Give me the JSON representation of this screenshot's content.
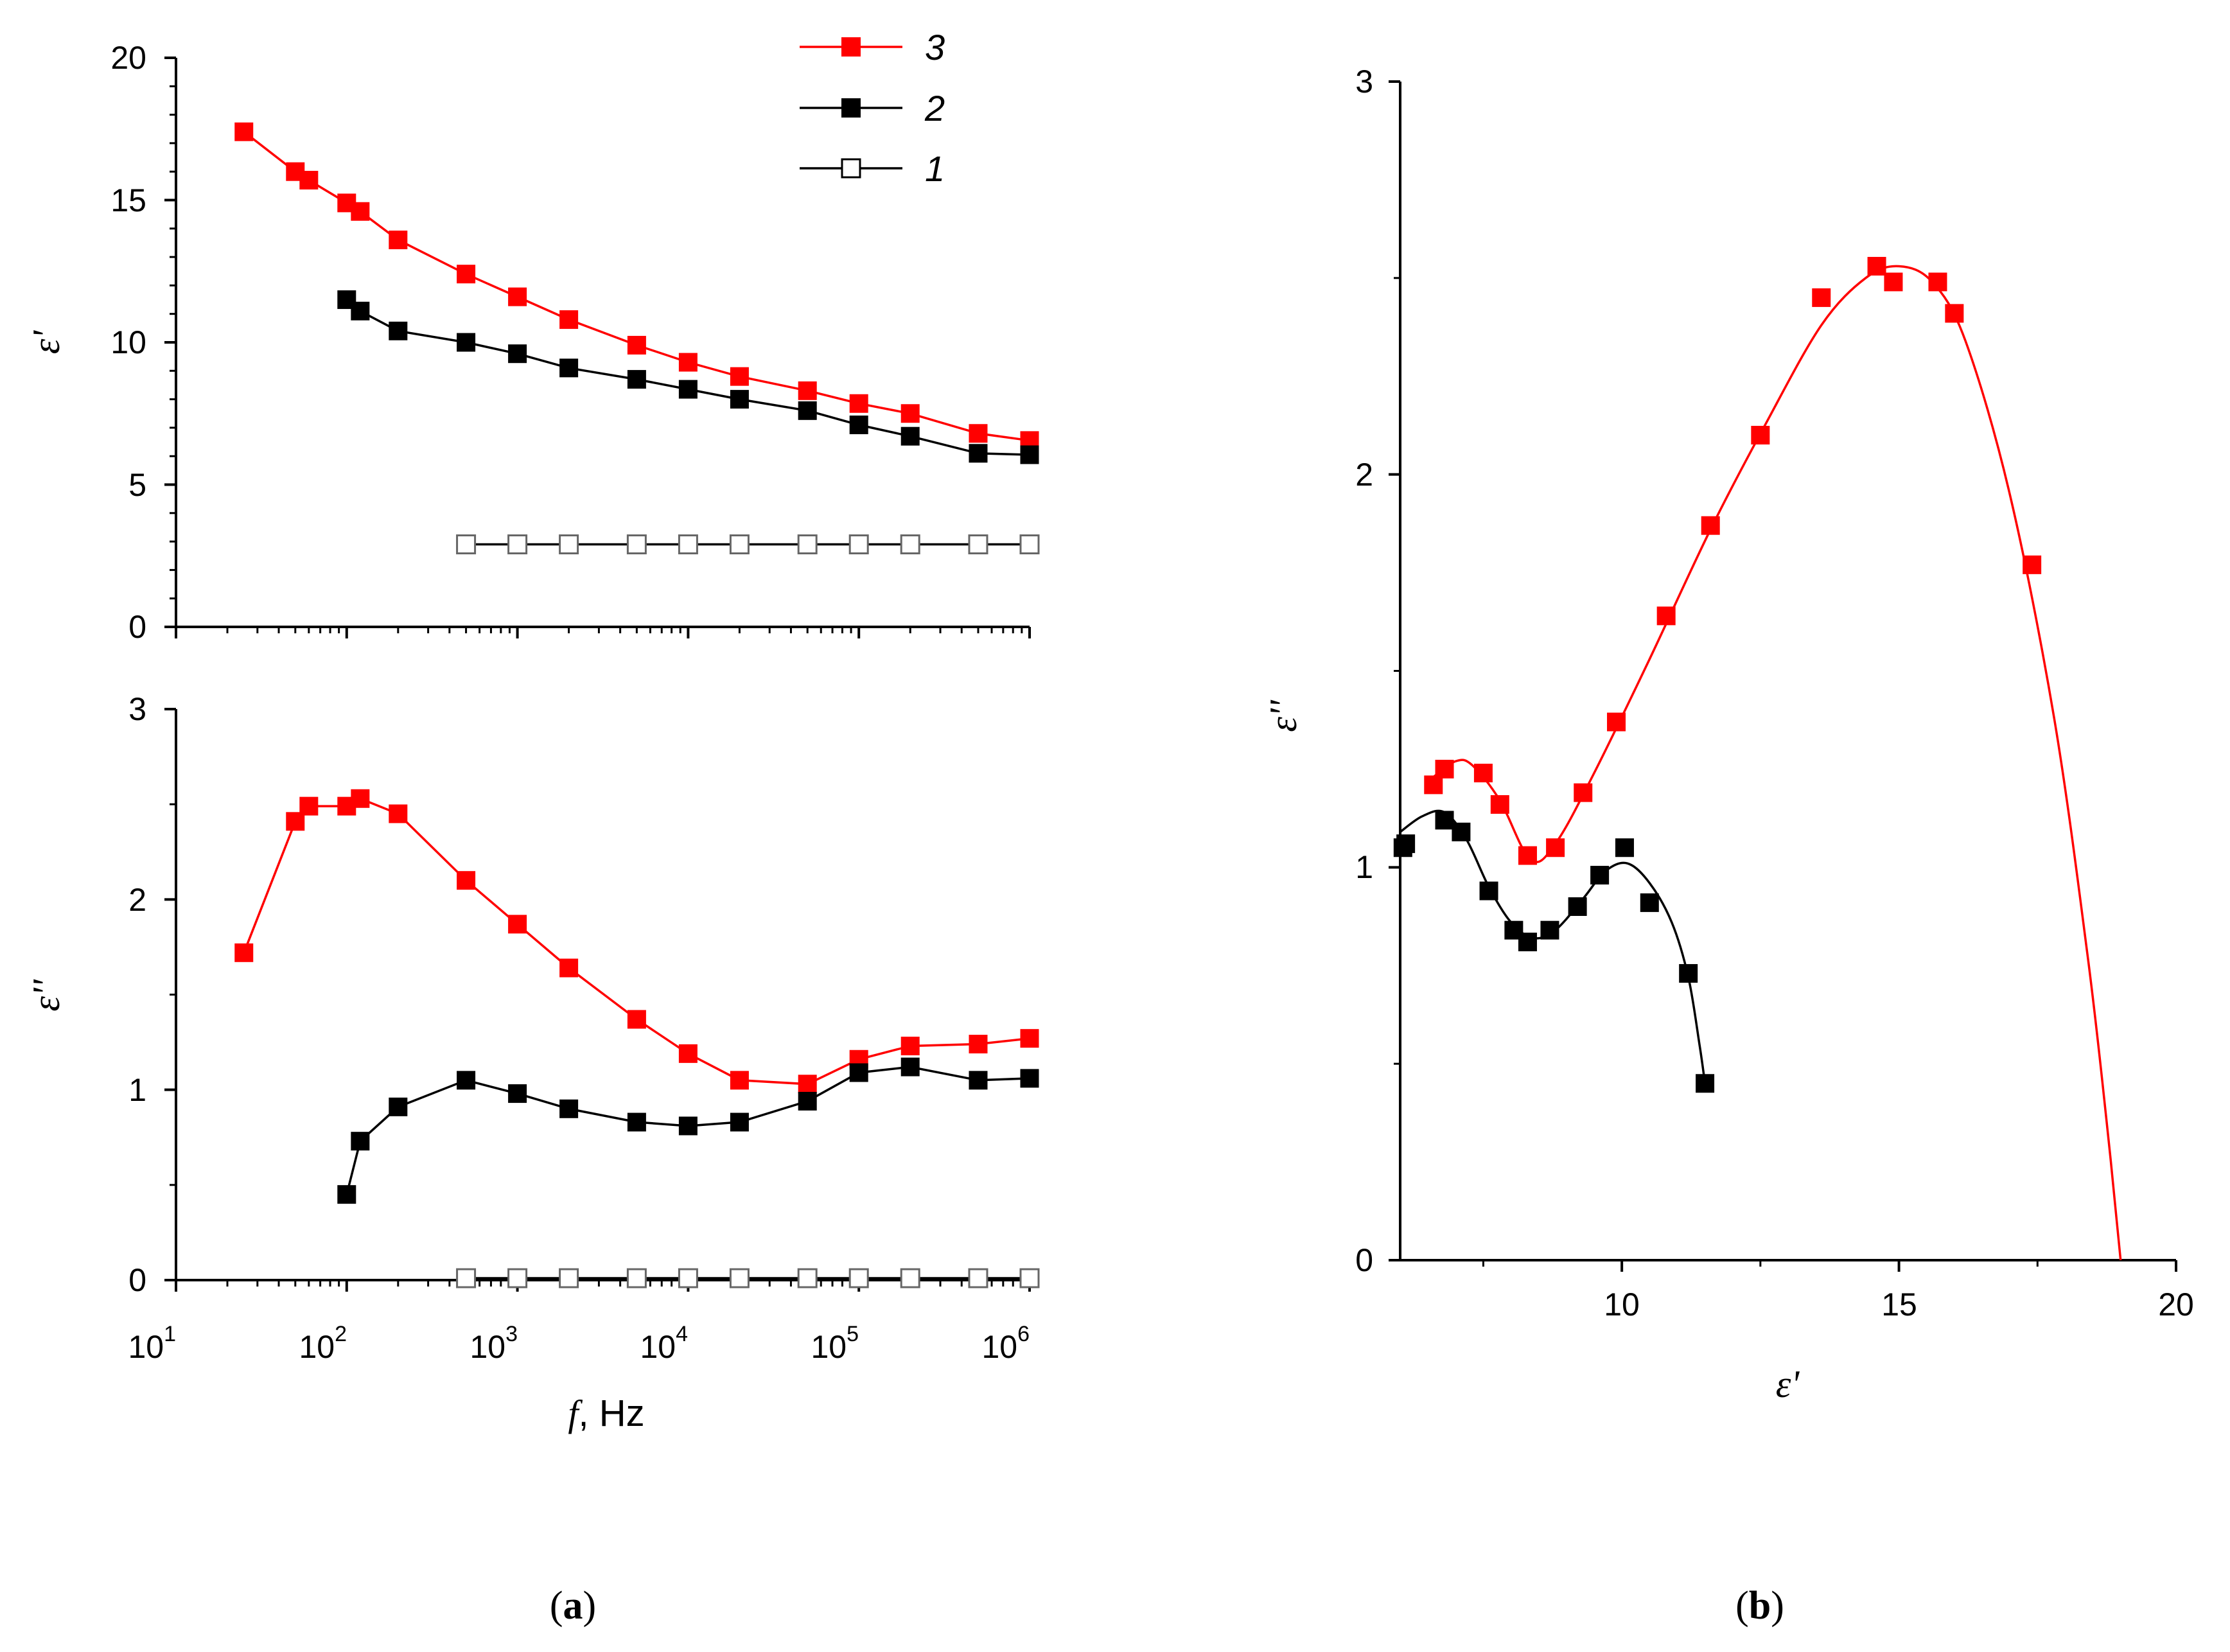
{
  "colors": {
    "red": "#ff0000",
    "black": "#000000",
    "open_fill": "#ffffff"
  },
  "legend": [
    {
      "label": "3",
      "color": "#ff0000",
      "marker": "filled-square"
    },
    {
      "label": "2",
      "color": "#000000",
      "marker": "filled-square"
    },
    {
      "label": "1",
      "color": "#000000",
      "marker": "open-square"
    }
  ],
  "panel_labels": {
    "a": {
      "open": "(",
      "letter": "a",
      "close": ")"
    },
    "b": {
      "open": "(",
      "letter": "b",
      "close": ")"
    }
  },
  "chart_data": [
    {
      "id": "a-top",
      "type": "line",
      "xscale": "log",
      "xlim": [
        10,
        1000000
      ],
      "ylim": [
        0,
        20
      ],
      "yticks": [
        "0",
        "5",
        "10",
        "15",
        "20"
      ],
      "ylabel": "ε'",
      "series": [
        {
          "name": "3",
          "color": "#ff0000",
          "marker": "filled-square",
          "x": [
            25,
            50,
            60,
            100,
            120,
            200,
            500,
            1000,
            2000,
            5000,
            10000,
            20000,
            50000,
            100000,
            200000,
            500000,
            1000000
          ],
          "y": [
            17.4,
            16.0,
            15.7,
            14.9,
            14.6,
            13.6,
            12.4,
            11.6,
            10.8,
            9.9,
            9.3,
            8.8,
            8.3,
            7.85,
            7.5,
            6.8,
            6.55
          ]
        },
        {
          "name": "2",
          "color": "#000000",
          "marker": "filled-square",
          "x": [
            100,
            120,
            200,
            500,
            1000,
            2000,
            5000,
            10000,
            20000,
            50000,
            100000,
            200000,
            500000,
            1000000
          ],
          "y": [
            11.5,
            11.1,
            10.4,
            10.0,
            9.6,
            9.1,
            8.7,
            8.35,
            8.0,
            7.6,
            7.1,
            6.7,
            6.1,
            6.05
          ]
        },
        {
          "name": "1",
          "color": "#000000",
          "marker": "open-square",
          "x": [
            500,
            1000,
            2000,
            5000,
            10000,
            20000,
            50000,
            100000,
            200000,
            500000,
            1000000
          ],
          "y": [
            2.9,
            2.9,
            2.9,
            2.9,
            2.9,
            2.9,
            2.9,
            2.9,
            2.9,
            2.9,
            2.9
          ]
        }
      ]
    },
    {
      "id": "a-bottom",
      "type": "line",
      "xscale": "log",
      "xlim": [
        10,
        1000000
      ],
      "ylim": [
        0,
        3
      ],
      "yticks": [
        "0",
        "1",
        "2",
        "3"
      ],
      "xticks": [
        {
          "base": "10",
          "exp": "1"
        },
        {
          "base": "10",
          "exp": "2"
        },
        {
          "base": "10",
          "exp": "3"
        },
        {
          "base": "10",
          "exp": "4"
        },
        {
          "base": "10",
          "exp": "5"
        },
        {
          "base": "10",
          "exp": "6"
        }
      ],
      "xlabel": {
        "symbol": "f",
        "unit": ", Hz"
      },
      "ylabel": "ε''",
      "series": [
        {
          "name": "3",
          "color": "#ff0000",
          "marker": "filled-square",
          "x": [
            25,
            50,
            60,
            100,
            120,
            200,
            500,
            1000,
            2000,
            5000,
            10000,
            20000,
            50000,
            100000,
            200000,
            500000,
            1000000
          ],
          "y": [
            1.72,
            2.41,
            2.49,
            2.49,
            2.53,
            2.45,
            2.1,
            1.87,
            1.64,
            1.37,
            1.19,
            1.05,
            1.03,
            1.16,
            1.23,
            1.24,
            1.27
          ]
        },
        {
          "name": "2",
          "color": "#000000",
          "marker": "filled-square",
          "x": [
            100,
            120,
            200,
            500,
            1000,
            2000,
            5000,
            10000,
            20000,
            50000,
            100000,
            200000,
            500000,
            1000000
          ],
          "y": [
            0.45,
            0.73,
            0.91,
            1.05,
            0.98,
            0.9,
            0.83,
            0.81,
            0.83,
            0.94,
            1.09,
            1.12,
            1.05,
            1.06
          ]
        },
        {
          "name": "1",
          "color": "#000000",
          "marker": "open-square",
          "x": [
            500,
            1000,
            2000,
            5000,
            10000,
            20000,
            50000,
            100000,
            200000,
            500000,
            1000000
          ],
          "y": [
            0.01,
            0.01,
            0.01,
            0.01,
            0.01,
            0.01,
            0.01,
            0.01,
            0.01,
            0.01,
            0.01
          ]
        }
      ]
    },
    {
      "id": "b",
      "type": "scatter",
      "xlim": [
        6,
        20
      ],
      "ylim": [
        0,
        3
      ],
      "xticks": [
        "10",
        "15",
        "20"
      ],
      "yticks": [
        "0",
        "1",
        "2",
        "3"
      ],
      "xlabel": "ε'",
      "ylabel": "ε''",
      "series": [
        {
          "name": "3",
          "color": "#ff0000",
          "marker": "filled-square",
          "points": [
            [
              6.6,
              1.21
            ],
            [
              6.8,
              1.25
            ],
            [
              7.5,
              1.24
            ],
            [
              7.8,
              1.16
            ],
            [
              8.3,
              1.03
            ],
            [
              8.8,
              1.05
            ],
            [
              9.3,
              1.19
            ],
            [
              9.9,
              1.37
            ],
            [
              10.8,
              1.64
            ],
            [
              11.6,
              1.87
            ],
            [
              12.5,
              2.1
            ],
            [
              13.6,
              2.45
            ],
            [
              14.6,
              2.53
            ],
            [
              14.9,
              2.49
            ],
            [
              15.7,
              2.49
            ],
            [
              16.0,
              2.41
            ],
            [
              17.4,
              1.77
            ]
          ],
          "fit_points": [
            [
              6.6,
              1.23
            ],
            [
              7.0,
              1.27
            ],
            [
              7.3,
              1.26
            ],
            [
              7.8,
              1.17
            ],
            [
              8.35,
              1.02
            ],
            [
              8.8,
              1.06
            ],
            [
              9.5,
              1.24
            ],
            [
              10.5,
              1.53
            ],
            [
              11.6,
              1.86
            ],
            [
              12.6,
              2.13
            ],
            [
              13.6,
              2.38
            ],
            [
              14.4,
              2.5
            ],
            [
              15.0,
              2.53
            ],
            [
              15.6,
              2.49
            ],
            [
              16.2,
              2.34
            ],
            [
              17.0,
              1.95
            ],
            [
              17.8,
              1.38
            ],
            [
              18.4,
              0.78
            ],
            [
              18.75,
              0.35
            ],
            [
              19.0,
              0.0
            ]
          ]
        },
        {
          "name": "2",
          "color": "#000000",
          "marker": "filled-square",
          "points": [
            [
              6.05,
              1.05
            ],
            [
              6.1,
              1.06
            ],
            [
              6.8,
              1.12
            ],
            [
              7.1,
              1.09
            ],
            [
              7.6,
              0.94
            ],
            [
              8.05,
              0.84
            ],
            [
              8.3,
              0.81
            ],
            [
              8.7,
              0.84
            ],
            [
              9.2,
              0.9
            ],
            [
              9.6,
              0.98
            ],
            [
              10.05,
              1.05
            ],
            [
              10.5,
              0.91
            ],
            [
              11.2,
              0.73
            ],
            [
              11.5,
              0.45
            ]
          ],
          "fit_points": [
            [
              6.0,
              1.09
            ],
            [
              6.4,
              1.13
            ],
            [
              6.8,
              1.14
            ],
            [
              7.2,
              1.07
            ],
            [
              7.6,
              0.95
            ],
            [
              8.0,
              0.86
            ],
            [
              8.4,
              0.82
            ],
            [
              8.8,
              0.84
            ],
            [
              9.3,
              0.92
            ],
            [
              9.7,
              0.99
            ],
            [
              10.1,
              1.01
            ],
            [
              10.5,
              0.96
            ],
            [
              10.9,
              0.86
            ],
            [
              11.2,
              0.72
            ],
            [
              11.4,
              0.55
            ],
            [
              11.5,
              0.45
            ]
          ]
        }
      ]
    }
  ]
}
